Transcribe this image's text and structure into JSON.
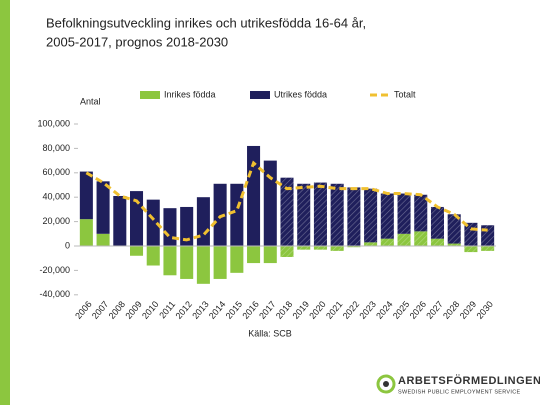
{
  "chart_data": {
    "type": "stacked_bar_line",
    "title": [
      "Befolkningsutveckling inrikes och utrikesfödda 16-64 år,",
      "2005-2017, prognos 2018-2030"
    ],
    "y_label": "Antal",
    "source": "Källa: SCB",
    "categories": [
      "2006",
      "2007",
      "2008",
      "2009",
      "2010",
      "2011",
      "2012",
      "2013",
      "2014",
      "2015",
      "2016",
      "2017",
      "2018",
      "2019",
      "2020",
      "2021",
      "2022",
      "2023",
      "2024",
      "2025",
      "2026",
      "2027",
      "2028",
      "2029",
      "2030"
    ],
    "series": [
      {
        "name": "Inrikes födda",
        "color": "#8cc63f",
        "kind": "bar",
        "values": [
          22000,
          10000,
          0,
          -8000,
          -16000,
          -24000,
          -27000,
          -31000,
          -27000,
          -22000,
          -14000,
          -14000,
          -9000,
          -3000,
          -3000,
          -4000,
          -1000,
          3000,
          6000,
          10000,
          12000,
          6000,
          2000,
          -5000,
          -4000
        ]
      },
      {
        "name": "Utrikes födda",
        "color": "#1f1f5c",
        "kind": "bar",
        "values": [
          39000,
          43000,
          41000,
          45000,
          38000,
          31000,
          32000,
          40000,
          51000,
          51000,
          82000,
          70000,
          56000,
          51000,
          52000,
          51000,
          48000,
          44000,
          37000,
          33000,
          30000,
          26000,
          24000,
          19000,
          17000
        ]
      },
      {
        "name": "Totalt",
        "color": "#f0c030",
        "kind": "line",
        "values": [
          60000,
          52000,
          41000,
          37000,
          22000,
          7000,
          5000,
          9000,
          24000,
          29000,
          68000,
          56000,
          47000,
          48000,
          49000,
          47000,
          47000,
          47000,
          43000,
          43000,
          42000,
          32000,
          26000,
          14000,
          13000
        ]
      }
    ],
    "forecast_from": "2018",
    "ylim": [
      -40000,
      100000
    ],
    "yticks": [
      {
        "value": -40000,
        "label": "-40,000"
      },
      {
        "value": -20000,
        "label": "-20,000"
      },
      0,
      {
        "value": 20000,
        "label": "20,000"
      },
      {
        "value": 40000,
        "label": "40,000"
      },
      {
        "value": 60000,
        "label": "60,000"
      },
      {
        "value": 80000,
        "label": "80,000"
      },
      {
        "value": 100000,
        "label": "100,000"
      }
    ]
  },
  "logo": {
    "name": "ARBETSFÖRMEDLINGEN",
    "tagline": "SWEDISH PUBLIC EMPLOYMENT SERVICE"
  }
}
